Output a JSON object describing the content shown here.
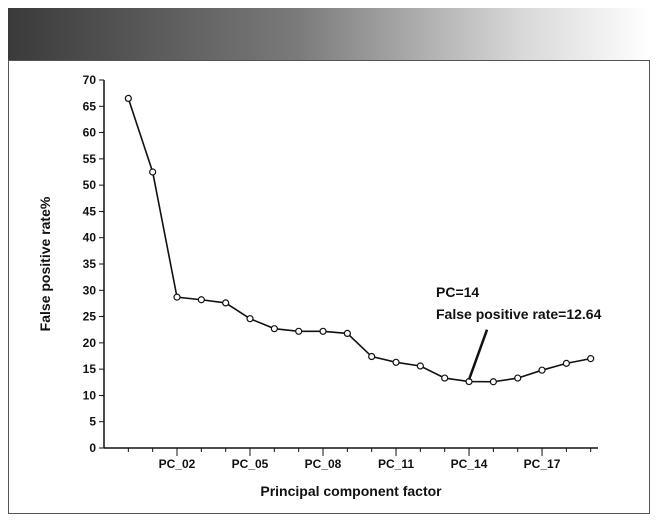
{
  "chart_data": {
    "type": "line",
    "title": "",
    "xlabel": "Principal component factor",
    "ylabel": "False positive rate%",
    "ylim": [
      0,
      70
    ],
    "yticks": [
      0,
      5,
      10,
      15,
      20,
      25,
      30,
      35,
      40,
      45,
      50,
      55,
      60,
      65,
      70
    ],
    "x": [
      1,
      2,
      3,
      4,
      5,
      6,
      7,
      8,
      9,
      10,
      11,
      12,
      13,
      14,
      15,
      16,
      17,
      18,
      19,
      20
    ],
    "xtick_labels": [
      {
        "x": 3,
        "label": "PC_02"
      },
      {
        "x": 6,
        "label": "PC_05"
      },
      {
        "x": 9,
        "label": "PC_08"
      },
      {
        "x": 12,
        "label": "PC_11"
      },
      {
        "x": 15,
        "label": "PC_14"
      },
      {
        "x": 18,
        "label": "PC_17"
      }
    ],
    "series": [
      {
        "values": [
          66.5,
          52.5,
          28.7,
          28.2,
          27.6,
          24.6,
          22.7,
          22.2,
          22.2,
          21.8,
          17.4,
          16.3,
          15.6,
          13.3,
          12.64,
          12.6,
          13.3,
          14.8,
          16.1,
          17.0
        ]
      }
    ],
    "annotation": {
      "lines": [
        "PC=14",
        "False positive rate=12.64"
      ],
      "x": 15,
      "y": 12.64
    },
    "grid": false
  }
}
